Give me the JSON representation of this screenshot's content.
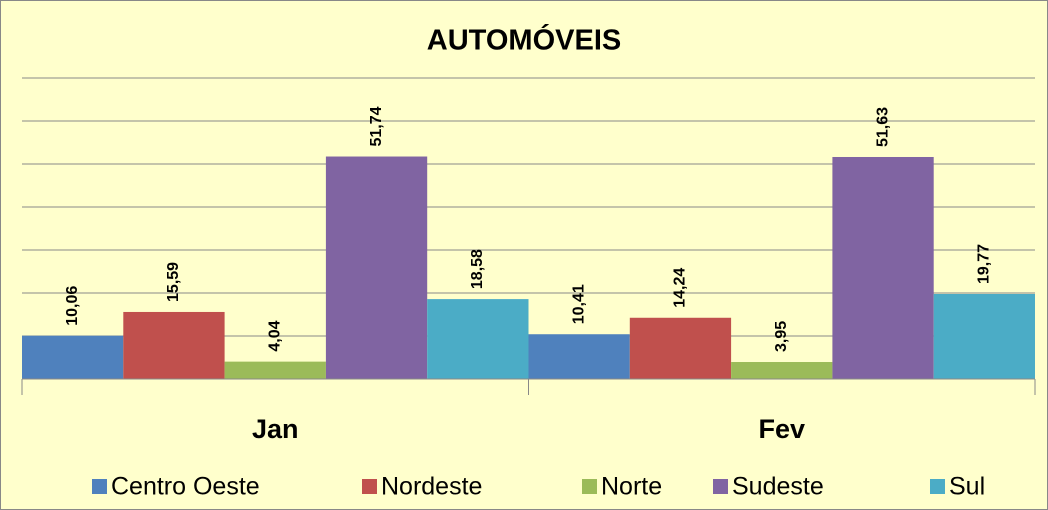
{
  "chart_data": {
    "type": "bar",
    "title": "AUTOMÓVEIS",
    "categories": [
      "Jan",
      "Fev"
    ],
    "series": [
      {
        "name": "Centro Oeste",
        "color": "#4f81bd",
        "values": [
          10.06,
          10.41
        ],
        "value_labels": [
          "10,06",
          "10,41"
        ]
      },
      {
        "name": "Nordeste",
        "color": "#c0504d",
        "values": [
          15.59,
          14.24
        ],
        "value_labels": [
          "15,59",
          "14,24"
        ]
      },
      {
        "name": "Norte",
        "color": "#9bbb59",
        "values": [
          4.04,
          3.95
        ],
        "value_labels": [
          "4,04",
          "3,95"
        ]
      },
      {
        "name": "Sudeste",
        "color": "#8064a2",
        "values": [
          51.74,
          51.63
        ],
        "value_labels": [
          "51,74",
          "51,63"
        ]
      },
      {
        "name": "Sul",
        "color": "#4bacc6",
        "values": [
          18.58,
          19.77
        ],
        "value_labels": [
          "18,58",
          "19,77"
        ]
      }
    ],
    "ylim": [
      0,
      70
    ],
    "yticks": [
      0,
      10,
      20,
      30,
      40,
      50,
      60,
      70
    ],
    "grid": true,
    "legend": "bottom"
  }
}
